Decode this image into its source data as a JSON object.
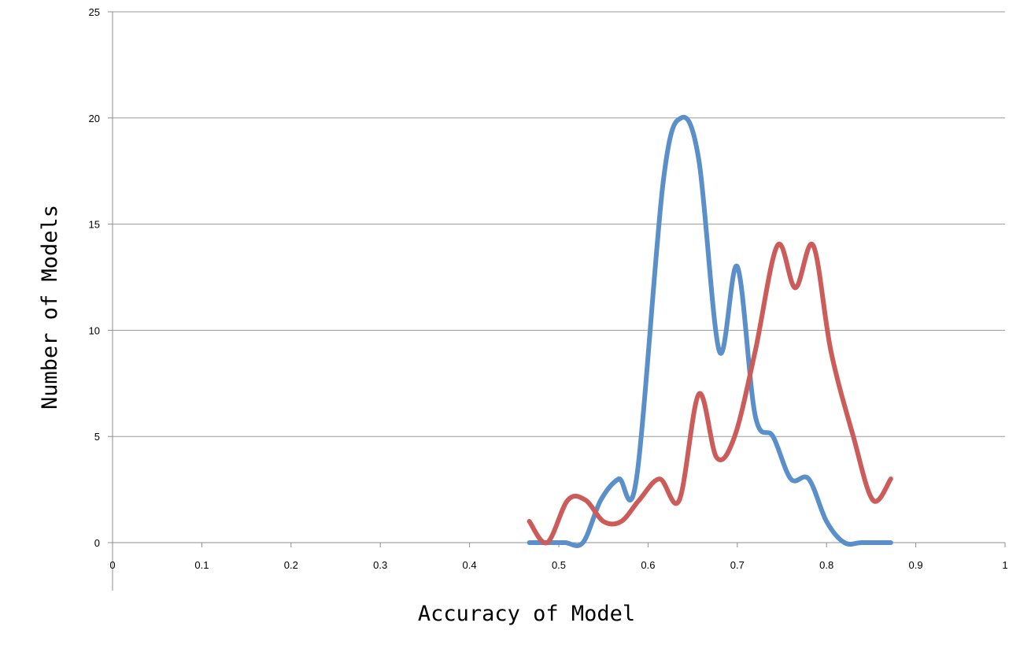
{
  "chart_data": {
    "type": "line",
    "title": "",
    "xlabel": "Accuracy of Model",
    "ylabel": "Number of Models",
    "xlim": [
      0,
      1
    ],
    "ylim": [
      0,
      25
    ],
    "x_ticks": [
      "0",
      "0.1",
      "0.2",
      "0.3",
      "0.4",
      "0.5",
      "0.6",
      "0.7",
      "0.8",
      "0.9",
      "1"
    ],
    "y_ticks": [
      "0",
      "5",
      "10",
      "15",
      "20",
      "25"
    ],
    "grid": "horizontal",
    "legend": "none",
    "smooth": true,
    "series": [
      {
        "color": "#5b8fc9",
        "points": [
          [
            0.467,
            0
          ],
          [
            0.487,
            0
          ],
          [
            0.507,
            0
          ],
          [
            0.527,
            0
          ],
          [
            0.547,
            2
          ],
          [
            0.567,
            3
          ],
          [
            0.587,
            3
          ],
          [
            0.617,
            17
          ],
          [
            0.637,
            20
          ],
          [
            0.657,
            18
          ],
          [
            0.68,
            9
          ],
          [
            0.7,
            13
          ],
          [
            0.72,
            6
          ],
          [
            0.74,
            5
          ],
          [
            0.76,
            3
          ],
          [
            0.78,
            3
          ],
          [
            0.8,
            1
          ],
          [
            0.82,
            0
          ],
          [
            0.84,
            0
          ],
          [
            0.872,
            0
          ]
        ]
      },
      {
        "color": "#cb5c5a",
        "points": [
          [
            0.467,
            1
          ],
          [
            0.487,
            0
          ],
          [
            0.51,
            2
          ],
          [
            0.53,
            2
          ],
          [
            0.55,
            1
          ],
          [
            0.57,
            1
          ],
          [
            0.59,
            2
          ],
          [
            0.613,
            3
          ],
          [
            0.635,
            2
          ],
          [
            0.657,
            7
          ],
          [
            0.677,
            4
          ],
          [
            0.697,
            5
          ],
          [
            0.72,
            9
          ],
          [
            0.745,
            14
          ],
          [
            0.765,
            12
          ],
          [
            0.785,
            14
          ],
          [
            0.805,
            9
          ],
          [
            0.83,
            5
          ],
          [
            0.852,
            2
          ],
          [
            0.872,
            3
          ]
        ]
      }
    ]
  }
}
